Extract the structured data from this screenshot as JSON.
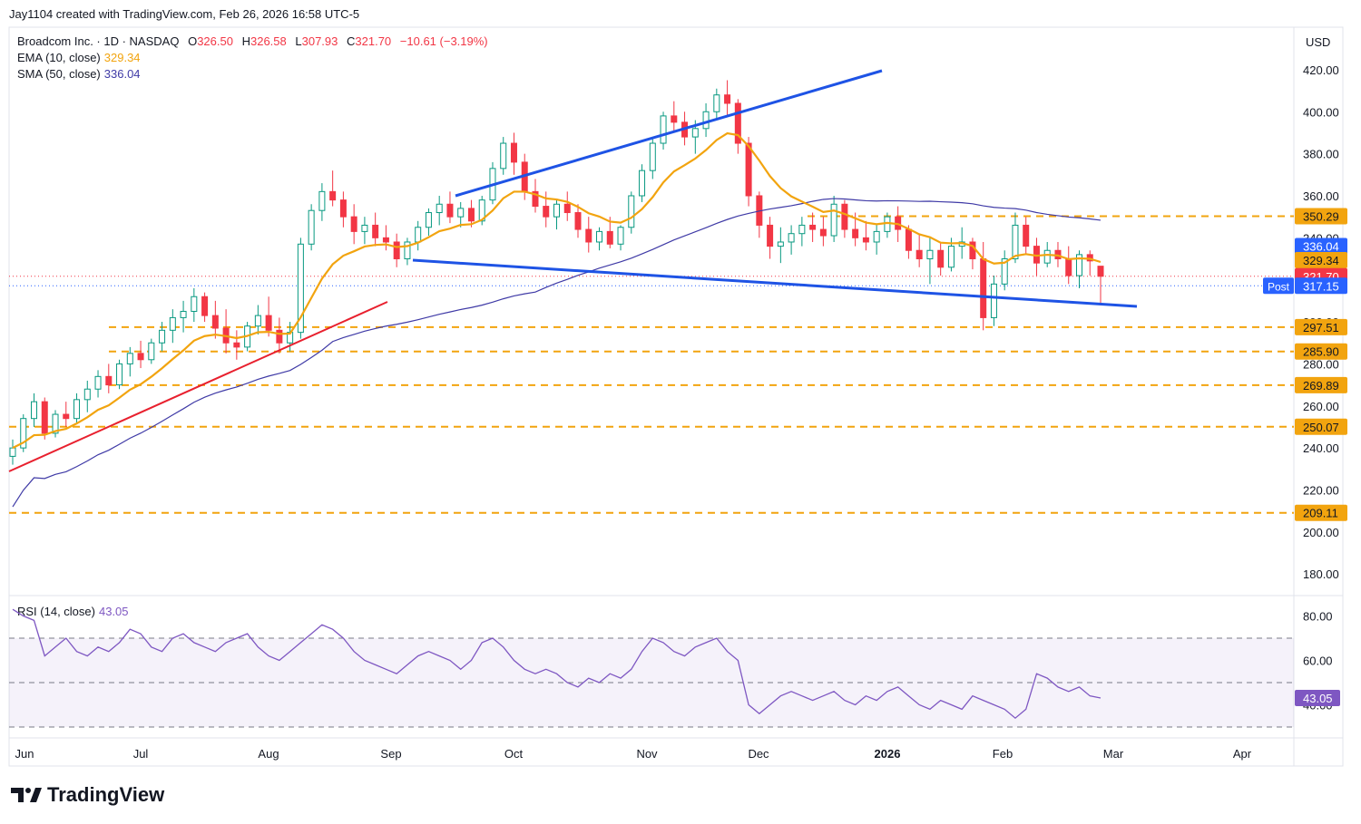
{
  "credit": "Jay1104 created with TradingView.com, Feb 26, 2026 16:58 UTC-5",
  "legend": {
    "symbol": "Broadcom Inc. · 1D · NASDAQ",
    "o_label": "O",
    "o_val": "326.50",
    "h_label": "H",
    "h_val": "326.58",
    "l_label": "L",
    "l_val": "307.93",
    "c_label": "C",
    "c_val": "321.70",
    "change": "−10.61 (−3.19%)",
    "ema_label": "EMA (10, close)",
    "ema_val": "329.34",
    "sma_label": "SMA (50, close)",
    "sma_val": "336.04",
    "rsi_label": "RSI (14, close)",
    "rsi_val": "43.05"
  },
  "currency": "USD",
  "brand": "TradingView",
  "colors": {
    "up": "#089981",
    "down": "#f23645",
    "ema": "#f2a40f",
    "sma": "#3f3aa6",
    "rsi": "#7e57c2",
    "trend_blue": "#1e53e5",
    "trend_red": "#e8202e",
    "level": "#f2a40f",
    "post_badge": "#2962ff"
  },
  "chart_data": {
    "type": "candlestick",
    "price_axis": {
      "ticks": [
        "420.00",
        "400.00",
        "380.00",
        "360.00",
        "340.00",
        "320.00",
        "300.00",
        "280.00",
        "260.00",
        "240.00",
        "220.00",
        "200.00",
        "180.00"
      ],
      "ylim": [
        180,
        420
      ]
    },
    "time_axis": {
      "labels": [
        "Jun",
        "Jul",
        "Aug",
        "Sep",
        "Oct",
        "Nov",
        "Dec",
        "2026",
        "Feb",
        "Mar",
        "Apr"
      ]
    },
    "last_candles": [
      {
        "date": "2026-02-25",
        "o": 327.9,
        "h": 333.5,
        "l": 326.0,
        "c": 332.3
      },
      {
        "date": "2026-02-26",
        "o": 326.5,
        "h": 326.58,
        "l": 307.93,
        "c": 321.7
      }
    ],
    "ohlc_approx": [
      [
        236,
        244,
        232,
        240
      ],
      [
        240,
        256,
        238,
        254
      ],
      [
        254,
        266,
        250,
        262
      ],
      [
        262,
        264,
        244,
        247
      ],
      [
        247,
        258,
        245,
        256
      ],
      [
        256,
        262,
        250,
        254
      ],
      [
        254,
        266,
        252,
        263
      ],
      [
        263,
        272,
        257,
        268
      ],
      [
        268,
        277,
        264,
        274
      ],
      [
        274,
        280,
        266,
        270
      ],
      [
        270,
        282,
        268,
        280
      ],
      [
        280,
        288,
        274,
        285
      ],
      [
        285,
        291,
        278,
        282
      ],
      [
        282,
        292,
        280,
        290
      ],
      [
        290,
        300,
        286,
        296
      ],
      [
        296,
        306,
        290,
        302
      ],
      [
        302,
        310,
        295,
        305
      ],
      [
        305,
        316,
        300,
        312
      ],
      [
        312,
        314,
        300,
        303
      ],
      [
        303,
        310,
        292,
        297
      ],
      [
        297,
        306,
        285,
        290
      ],
      [
        290,
        296,
        282,
        288
      ],
      [
        288,
        300,
        286,
        298
      ],
      [
        298,
        308,
        294,
        303
      ],
      [
        303,
        312,
        293,
        296
      ],
      [
        296,
        302,
        285,
        290
      ],
      [
        290,
        300,
        286,
        295
      ],
      [
        295,
        340,
        292,
        337
      ],
      [
        337,
        356,
        334,
        353
      ],
      [
        353,
        366,
        348,
        362
      ],
      [
        362,
        372,
        355,
        358
      ],
      [
        358,
        362,
        345,
        350
      ],
      [
        350,
        356,
        337,
        343
      ],
      [
        343,
        350,
        337,
        346
      ],
      [
        346,
        352,
        336,
        340
      ],
      [
        340,
        346,
        334,
        338
      ],
      [
        338,
        342,
        326,
        330
      ],
      [
        330,
        340,
        327,
        338
      ],
      [
        338,
        348,
        334,
        345
      ],
      [
        345,
        354,
        341,
        352
      ],
      [
        352,
        360,
        346,
        356
      ],
      [
        356,
        362,
        347,
        350
      ],
      [
        350,
        357,
        345,
        354
      ],
      [
        354,
        358,
        345,
        348
      ],
      [
        348,
        360,
        346,
        358
      ],
      [
        358,
        376,
        356,
        373
      ],
      [
        373,
        388,
        370,
        385
      ],
      [
        385,
        390,
        370,
        376
      ],
      [
        376,
        380,
        358,
        362
      ],
      [
        362,
        368,
        352,
        355
      ],
      [
        355,
        362,
        345,
        350
      ],
      [
        350,
        358,
        344,
        356
      ],
      [
        356,
        362,
        348,
        352
      ],
      [
        352,
        356,
        340,
        344
      ],
      [
        344,
        350,
        333,
        338
      ],
      [
        338,
        345,
        334,
        343
      ],
      [
        343,
        350,
        335,
        337
      ],
      [
        337,
        346,
        334,
        345
      ],
      [
        345,
        362,
        342,
        360
      ],
      [
        360,
        375,
        357,
        372
      ],
      [
        372,
        388,
        368,
        385
      ],
      [
        385,
        400,
        382,
        398
      ],
      [
        398,
        405,
        390,
        395
      ],
      [
        395,
        400,
        384,
        388
      ],
      [
        388,
        396,
        380,
        392
      ],
      [
        392,
        404,
        388,
        400
      ],
      [
        400,
        411,
        396,
        408
      ],
      [
        408,
        415,
        398,
        404
      ],
      [
        404,
        406,
        380,
        385
      ],
      [
        385,
        388,
        355,
        360
      ],
      [
        360,
        362,
        340,
        346
      ],
      [
        346,
        350,
        330,
        336
      ],
      [
        336,
        345,
        328,
        338
      ],
      [
        338,
        346,
        332,
        342
      ],
      [
        342,
        350,
        336,
        346
      ],
      [
        346,
        352,
        338,
        344
      ],
      [
        344,
        350,
        336,
        341
      ],
      [
        341,
        360,
        338,
        356
      ],
      [
        356,
        358,
        340,
        344
      ],
      [
        344,
        352,
        336,
        340
      ],
      [
        340,
        348,
        334,
        338
      ],
      [
        338,
        346,
        332,
        343
      ],
      [
        343,
        352,
        340,
        350
      ],
      [
        350,
        355,
        338,
        344
      ],
      [
        344,
        346,
        330,
        334
      ],
      [
        334,
        342,
        326,
        330
      ],
      [
        330,
        340,
        318,
        334
      ],
      [
        334,
        338,
        322,
        326
      ],
      [
        326,
        340,
        324,
        336
      ],
      [
        336,
        345,
        330,
        338
      ],
      [
        338,
        340,
        325,
        330
      ],
      [
        330,
        338,
        296,
        302
      ],
      [
        302,
        322,
        298,
        318
      ],
      [
        318,
        334,
        315,
        330
      ],
      [
        330,
        352,
        328,
        346
      ],
      [
        346,
        350,
        332,
        336
      ],
      [
        336,
        340,
        322,
        328
      ],
      [
        328,
        338,
        326,
        334
      ],
      [
        334,
        338,
        326,
        330
      ],
      [
        330,
        336,
        318,
        322
      ],
      [
        322,
        334,
        316,
        332
      ],
      [
        332,
        334,
        322,
        329
      ],
      [
        326.5,
        326.58,
        307.93,
        321.7
      ]
    ],
    "series": [
      {
        "name": "EMA (10, close)",
        "last": 329.34
      },
      {
        "name": "SMA (50, close)",
        "last": 336.04
      }
    ],
    "levels": [
      350.29,
      297.51,
      285.9,
      269.89,
      250.07,
      209.11
    ],
    "price_labels": [
      {
        "text": "350.29",
        "kind": "level"
      },
      {
        "text": "336.04",
        "kind": "sma"
      },
      {
        "text": "329.34",
        "kind": "ema"
      },
      {
        "text": "321.70",
        "kind": "last"
      },
      {
        "text": "317.15",
        "kind": "post",
        "tag": "Post"
      },
      {
        "text": "297.51",
        "kind": "level"
      },
      {
        "text": "285.90",
        "kind": "level"
      },
      {
        "text": "269.89",
        "kind": "level"
      },
      {
        "text": "250.07",
        "kind": "level"
      },
      {
        "text": "209.11",
        "kind": "level"
      }
    ],
    "post_tag": "Post",
    "rsi": {
      "axis_ticks": [
        "80.00",
        "60.00",
        "40.00"
      ],
      "overbought": 70,
      "oversold": 30,
      "mid": 50,
      "values_approx": [
        83,
        80,
        78,
        62,
        66,
        70,
        64,
        62,
        66,
        64,
        68,
        74,
        72,
        66,
        64,
        70,
        72,
        68,
        66,
        64,
        68,
        70,
        72,
        66,
        62,
        60,
        64,
        68,
        72,
        76,
        74,
        70,
        64,
        60,
        58,
        56,
        54,
        58,
        62,
        64,
        62,
        60,
        56,
        60,
        68,
        70,
        66,
        60,
        56,
        54,
        56,
        54,
        50,
        48,
        52,
        50,
        54,
        52,
        56,
        64,
        70,
        68,
        64,
        62,
        66,
        68,
        70,
        64,
        60,
        40,
        36,
        40,
        44,
        46,
        44,
        42,
        44,
        46,
        42,
        40,
        44,
        42,
        46,
        48,
        44,
        40,
        38,
        42,
        40,
        38,
        44,
        42,
        40,
        38,
        34,
        38,
        54,
        52,
        48,
        46,
        48,
        44,
        43.05
      ],
      "last": 43.05
    }
  }
}
